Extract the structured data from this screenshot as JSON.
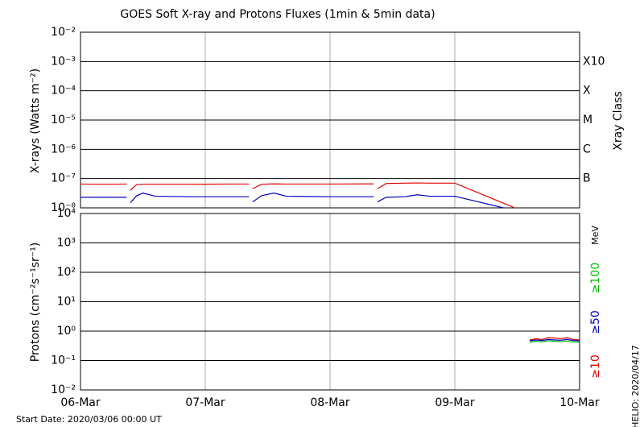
{
  "title": "GOES Soft X-ray and Protons Fluxes   (1min & 5min data)",
  "footer": "Start Date: 2020/03/06 00:00 UT",
  "credit": "HELIO: 2020/04/17",
  "chart_data": [
    {
      "type": "line",
      "y_label": "X-rays (Watts m⁻²)",
      "y2_label": "Xray Class",
      "yscale": "log",
      "grid": true,
      "xlim": [
        0,
        4
      ],
      "ylim": [
        1e-08,
        0.01
      ],
      "yticks": [
        {
          "value": 1e-08,
          "label": "10⁻⁸"
        },
        {
          "value": 1e-07,
          "label": "10⁻⁷"
        },
        {
          "value": 1e-06,
          "label": "10⁻⁶"
        },
        {
          "value": 1e-05,
          "label": "10⁻⁵"
        },
        {
          "value": 0.0001,
          "label": "10⁻⁴"
        },
        {
          "value": 0.001,
          "label": "10⁻³"
        },
        {
          "value": 0.01,
          "label": "10⁻²"
        }
      ],
      "class_labels": [
        {
          "value": 0.001,
          "label": "X10"
        },
        {
          "value": 0.0001,
          "label": "X"
        },
        {
          "value": 1e-05,
          "label": "M"
        },
        {
          "value": 1e-06,
          "label": "C"
        },
        {
          "value": 1e-07,
          "label": "B"
        }
      ],
      "x": [
        0,
        0.2,
        0.37,
        0.385,
        0.4,
        0.45,
        0.5,
        0.6,
        0.9,
        1.2,
        1.35,
        1.37,
        1.38,
        1.45,
        1.55,
        1.65,
        2.0,
        2.35,
        2.365,
        2.38,
        2.45,
        2.6,
        2.7,
        2.8,
        3.0,
        3.39,
        3.48
      ],
      "series": [
        {
          "color": "#e00000",
          "values": [
            6.5e-08,
            6.4e-08,
            6.5e-08,
            null,
            4e-08,
            6.2e-08,
            6.4e-08,
            6.4e-08,
            6.4e-08,
            6.5e-08,
            6.5e-08,
            null,
            4.5e-08,
            6.4e-08,
            6.6e-08,
            6.5e-08,
            6.5e-08,
            6.6e-08,
            null,
            4.5e-08,
            6.8e-08,
            7e-08,
            7.1e-08,
            7e-08,
            7e-08,
            1.45e-08,
            1e-08
          ]
        },
        {
          "color": "#0000c0",
          "values": [
            2.3e-08,
            2.3e-08,
            2.3e-08,
            null,
            1.5e-08,
            2.6e-08,
            3.2e-08,
            2.5e-08,
            2.4e-08,
            2.4e-08,
            2.4e-08,
            null,
            1.6e-08,
            2.6e-08,
            3.2e-08,
            2.5e-08,
            2.4e-08,
            2.4e-08,
            null,
            1.6e-08,
            2.3e-08,
            2.4e-08,
            2.8e-08,
            2.5e-08,
            2.5e-08,
            1e-08,
            null
          ]
        }
      ]
    },
    {
      "type": "line",
      "y_label": "Protons (cm⁻²s⁻¹sr⁻¹)",
      "unit_label": "MeV",
      "yscale": "log",
      "grid": true,
      "xlim": [
        0,
        4
      ],
      "ylim": [
        0.01,
        10000
      ],
      "xticks": [
        {
          "value": 0,
          "label": "06-Mar"
        },
        {
          "value": 1,
          "label": "07-Mar"
        },
        {
          "value": 2,
          "label": "08-Mar"
        },
        {
          "value": 3,
          "label": "09-Mar"
        },
        {
          "value": 4,
          "label": "10-Mar"
        }
      ],
      "yticks": [
        {
          "value": 0.01,
          "label": "10⁻²"
        },
        {
          "value": 0.1,
          "label": "10⁻¹"
        },
        {
          "value": 1,
          "label": "10⁰"
        },
        {
          "value": 10,
          "label": "10¹"
        },
        {
          "value": 100,
          "label": "10²"
        },
        {
          "value": 1000,
          "label": "10³"
        },
        {
          "value": 10000,
          "label": "10⁴"
        }
      ],
      "reference_lines": [
        {
          "value": 10,
          "style": "dashed"
        }
      ],
      "x": [
        3.6,
        3.65,
        3.7,
        3.75,
        3.8,
        3.85,
        3.9,
        3.95,
        4.0
      ],
      "series": [
        {
          "name": "≥10",
          "color": "#e00000",
          "values": [
            0.5,
            0.55,
            0.52,
            0.6,
            0.58,
            0.55,
            0.6,
            0.52,
            0.5
          ]
        },
        {
          "name": "≥50",
          "color": "#0000c0",
          "values": [
            0.47,
            0.5,
            0.48,
            0.52,
            0.5,
            0.49,
            0.52,
            0.48,
            0.47
          ]
        },
        {
          "name": "≥100",
          "color": "#00c000",
          "values": [
            0.42,
            0.45,
            0.43,
            0.47,
            0.45,
            0.44,
            0.46,
            0.43,
            0.42
          ]
        }
      ]
    }
  ]
}
